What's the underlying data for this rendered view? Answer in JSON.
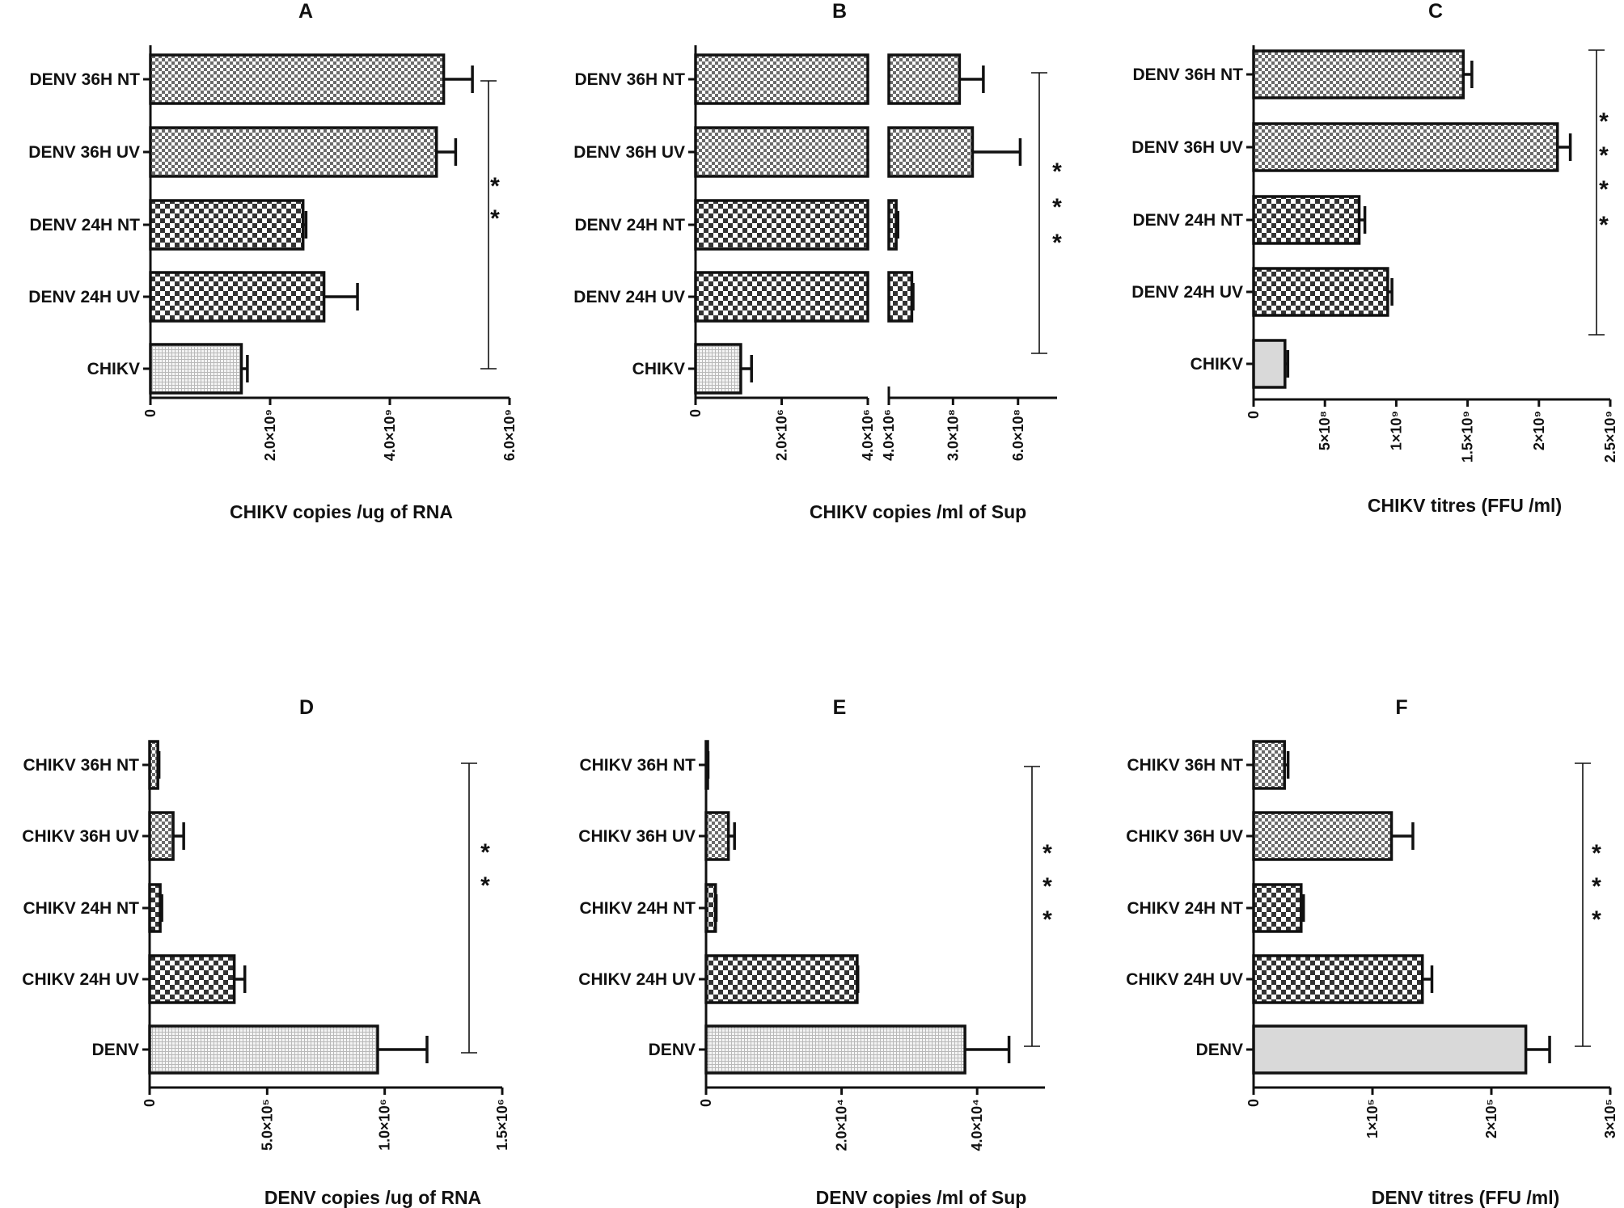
{
  "chart_data": [
    {
      "panel": "A",
      "type": "bar",
      "orientation": "horizontal",
      "title": "A",
      "xlabel": "CHIKV copies /ug of RNA",
      "xlim": [
        0,
        6000000000
      ],
      "ticks": [
        {
          "v": 0,
          "label": "0"
        },
        {
          "v": 2000000000,
          "label": "2.0×10⁹"
        },
        {
          "v": 4000000000,
          "label": "4.0×10⁹"
        },
        {
          "v": 6000000000,
          "label": "6.0×10⁹"
        }
      ],
      "categories": [
        "DENV 36H NT",
        "DENV 36H UV",
        "DENV 24H NT",
        "DENV 24H UV",
        "CHIKV"
      ],
      "values": [
        4900000000,
        4780000000,
        2550000000,
        2900000000,
        1520000000
      ],
      "errors": [
        480000000,
        320000000,
        50000000,
        560000000,
        100000000
      ],
      "patterns": [
        "fine",
        "fine",
        "medium",
        "medium",
        "grid"
      ],
      "significance": {
        "stars": "**",
        "from": "DENV 36H NT",
        "to": "CHIKV"
      }
    },
    {
      "panel": "B",
      "type": "bar",
      "orientation": "horizontal",
      "broken_axis": true,
      "title": "B",
      "xlabel": "CHIKV copies /ml of Sup",
      "segments": [
        {
          "xlim": [
            0,
            4000000
          ],
          "ticks": [
            {
              "v": 0,
              "label": "0"
            },
            {
              "v": 2000000,
              "label": "2.0×10⁶"
            },
            {
              "v": 4000000,
              "label": "4.0×10⁶"
            }
          ]
        },
        {
          "xlim": [
            4000000,
            780000000
          ],
          "ticks": [
            {
              "v": 4000000,
              "label": "4.0×10⁶"
            },
            {
              "v": 300000000,
              "label": "3.0×10⁸"
            },
            {
              "v": 600000000,
              "label": "6.0×10⁸"
            }
          ]
        }
      ],
      "categories": [
        "DENV 36H NT",
        "DENV 36H UV",
        "DENV 24H NT",
        "DENV 24H UV",
        "CHIKV"
      ],
      "values": [
        330000000,
        390000000,
        38000000,
        110000000,
        1050000
      ],
      "errors": [
        110000000,
        220000000,
        8000000,
        6000000,
        250000
      ],
      "patterns": [
        "fine",
        "fine",
        "medium",
        "medium",
        "grid"
      ],
      "significance": {
        "stars": "***",
        "from": "DENV 36H NT",
        "to": "CHIKV"
      }
    },
    {
      "panel": "C",
      "type": "bar",
      "orientation": "horizontal",
      "title": "C",
      "xlabel": "CHIKV titres (FFU /ml)",
      "xlim": [
        0,
        2500000000
      ],
      "ticks": [
        {
          "v": 0,
          "label": "0"
        },
        {
          "v": 500000000,
          "label": "5×10⁸"
        },
        {
          "v": 1000000000,
          "label": "1×10⁹"
        },
        {
          "v": 1500000000,
          "label": "1.5×10⁹"
        },
        {
          "v": 2000000000,
          "label": "2×10⁹"
        },
        {
          "v": 2500000000,
          "label": "2.5×10⁹"
        }
      ],
      "categories": [
        "DENV 36H NT",
        "DENV 36H UV",
        "DENV 24H NT",
        "DENV 24H UV",
        "CHIKV"
      ],
      "values": [
        1470000000,
        2130000000,
        740000000,
        940000000,
        220000000
      ],
      "errors": [
        60000000,
        90000000,
        40000000,
        30000000,
        20000000
      ],
      "patterns": [
        "fine",
        "fine",
        "medium",
        "medium",
        "plain"
      ],
      "significance": {
        "stars": "****",
        "from": "DENV 36H NT",
        "to": "DENV 24H UV"
      }
    },
    {
      "panel": "D",
      "type": "bar",
      "orientation": "horizontal",
      "title": "D",
      "xlabel": "DENV copies /ug of RNA",
      "xlim": [
        0,
        1500000
      ],
      "ticks": [
        {
          "v": 0,
          "label": "0"
        },
        {
          "v": 500000,
          "label": "5.0×10⁵"
        },
        {
          "v": 1000000,
          "label": "1.0×10⁶"
        },
        {
          "v": 1500000,
          "label": "1.5×10⁶"
        }
      ],
      "categories": [
        "CHIKV 36H NT",
        "CHIKV 36H UV",
        "CHIKV 24H NT",
        "CHIKV 24H UV",
        "DENV"
      ],
      "values": [
        35000,
        100000,
        45000,
        360000,
        970000
      ],
      "errors": [
        5000,
        45000,
        7000,
        45000,
        210000
      ],
      "patterns": [
        "fine",
        "fine",
        "medium",
        "medium",
        "grid"
      ],
      "significance": {
        "stars": "**",
        "from": "CHIKV 36H NT",
        "to": "DENV"
      }
    },
    {
      "panel": "E",
      "type": "bar",
      "orientation": "horizontal",
      "title": "E",
      "xlabel": "DENV copies /ml of Sup",
      "xlim": [
        0,
        50000
      ],
      "ticks": [
        {
          "v": 0,
          "label": "0"
        },
        {
          "v": 20000,
          "label": "2.0×10⁴"
        },
        {
          "v": 40000,
          "label": "4.0×10⁴"
        }
      ],
      "categories": [
        "CHIKV 36H NT",
        "CHIKV 36H UV",
        "CHIKV 24H NT",
        "CHIKV 24H UV",
        "DENV"
      ],
      "values": [
        200,
        3300,
        1400,
        22300,
        38200
      ],
      "errors": [
        100,
        900,
        100,
        100,
        6500
      ],
      "patterns": [
        "fine",
        "fine",
        "medium",
        "medium",
        "grid"
      ],
      "significance": {
        "stars": "***",
        "from": "CHIKV 36H NT",
        "to": "DENV"
      }
    },
    {
      "panel": "F",
      "type": "bar",
      "orientation": "horizontal",
      "title": "F",
      "xlabel": "DENV titres (FFU /ml)",
      "xlim": [
        0,
        300000
      ],
      "ticks": [
        {
          "v": 0,
          "label": "0"
        },
        {
          "v": 100000,
          "label": "1×10⁵"
        },
        {
          "v": 200000,
          "label": "2×10⁵"
        },
        {
          "v": 300000,
          "label": "3×10⁵"
        }
      ],
      "categories": [
        "CHIKV 36H NT",
        "CHIKV 36H UV",
        "CHIKV 24H NT",
        "CHIKV 24H UV",
        "DENV"
      ],
      "values": [
        26000,
        116000,
        40000,
        142000,
        229000
      ],
      "errors": [
        3000,
        18000,
        2000,
        8000,
        20000
      ],
      "patterns": [
        "fine",
        "fine",
        "medium",
        "medium",
        "plain"
      ],
      "significance": {
        "stars": "***",
        "from": "CHIKV 36H NT",
        "to": "DENV"
      }
    }
  ],
  "colors": {
    "ink": "#111111",
    "fine_light": "#ffffff",
    "fine_dark": "#6a6a6a",
    "medium_dark": "#333333",
    "grid_light": "#f4f4f4",
    "grid_line": "#b9b9b9",
    "plain_fill": "#d9d9d9"
  }
}
